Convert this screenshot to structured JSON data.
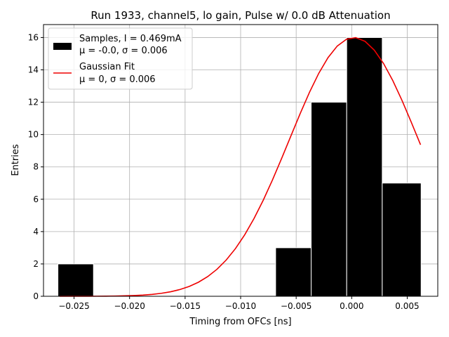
{
  "chart_data": {
    "type": "bar",
    "title": "Run 1933, channel5, lo gain, Pulse w/ 0.0 dB Attenuation",
    "xlabel": "Timing from OFCs [ns]",
    "ylabel": "Entries",
    "xlim": [
      -0.02775,
      0.00775
    ],
    "ylim": [
      0,
      16.8
    ],
    "xticks": [
      -0.025,
      -0.02,
      -0.015,
      -0.01,
      -0.005,
      0.0,
      0.005
    ],
    "xtick_labels": [
      "−0.025",
      "−0.020",
      "−0.015",
      "−0.010",
      "−0.005",
      "0.000",
      "0.005"
    ],
    "yticks": [
      0,
      2,
      4,
      6,
      8,
      10,
      12,
      14,
      16
    ],
    "ytick_labels": [
      "0",
      "2",
      "4",
      "6",
      "8",
      "10",
      "12",
      "14",
      "16"
    ],
    "grid": true,
    "histogram": {
      "name": "Samples, I = 0.469mA",
      "color": "#000000",
      "edge_color": "#ffffff",
      "bins": [
        {
          "x0": -0.02645,
          "x1": -0.02325,
          "count": 2
        },
        {
          "x0": -0.02325,
          "x1": -0.02005,
          "count": 0
        },
        {
          "x0": -0.02005,
          "x1": -0.01685,
          "count": 0
        },
        {
          "x0": -0.01685,
          "x1": -0.01365,
          "count": 0
        },
        {
          "x0": -0.01365,
          "x1": -0.01045,
          "count": 0
        },
        {
          "x0": -0.01045,
          "x1": -0.00725,
          "count": 0
        },
        {
          "x0": -0.00685,
          "x1": -0.00365,
          "count": 3
        },
        {
          "x0": -0.00365,
          "x1": -0.00045,
          "count": 12
        },
        {
          "x0": -0.00045,
          "x1": 0.00275,
          "count": 16
        },
        {
          "x0": 0.00275,
          "x1": 0.00625,
          "count": 7
        }
      ]
    },
    "fit": {
      "name": "Gaussian Fit",
      "color": "#ee0000",
      "amplitude": 16,
      "mu": 0.0002,
      "sigma": 0.0058,
      "x_start": -0.0263,
      "x_end": 0.0062,
      "n_points": 40
    },
    "legend": {
      "position": "top-left",
      "entries": [
        {
          "line1": "Samples, I = 0.469mA",
          "line2": "μ = -0.0, σ = 0.006"
        },
        {
          "line1": "Gaussian Fit",
          "line2": "μ = 0, σ = 0.006"
        }
      ]
    }
  }
}
